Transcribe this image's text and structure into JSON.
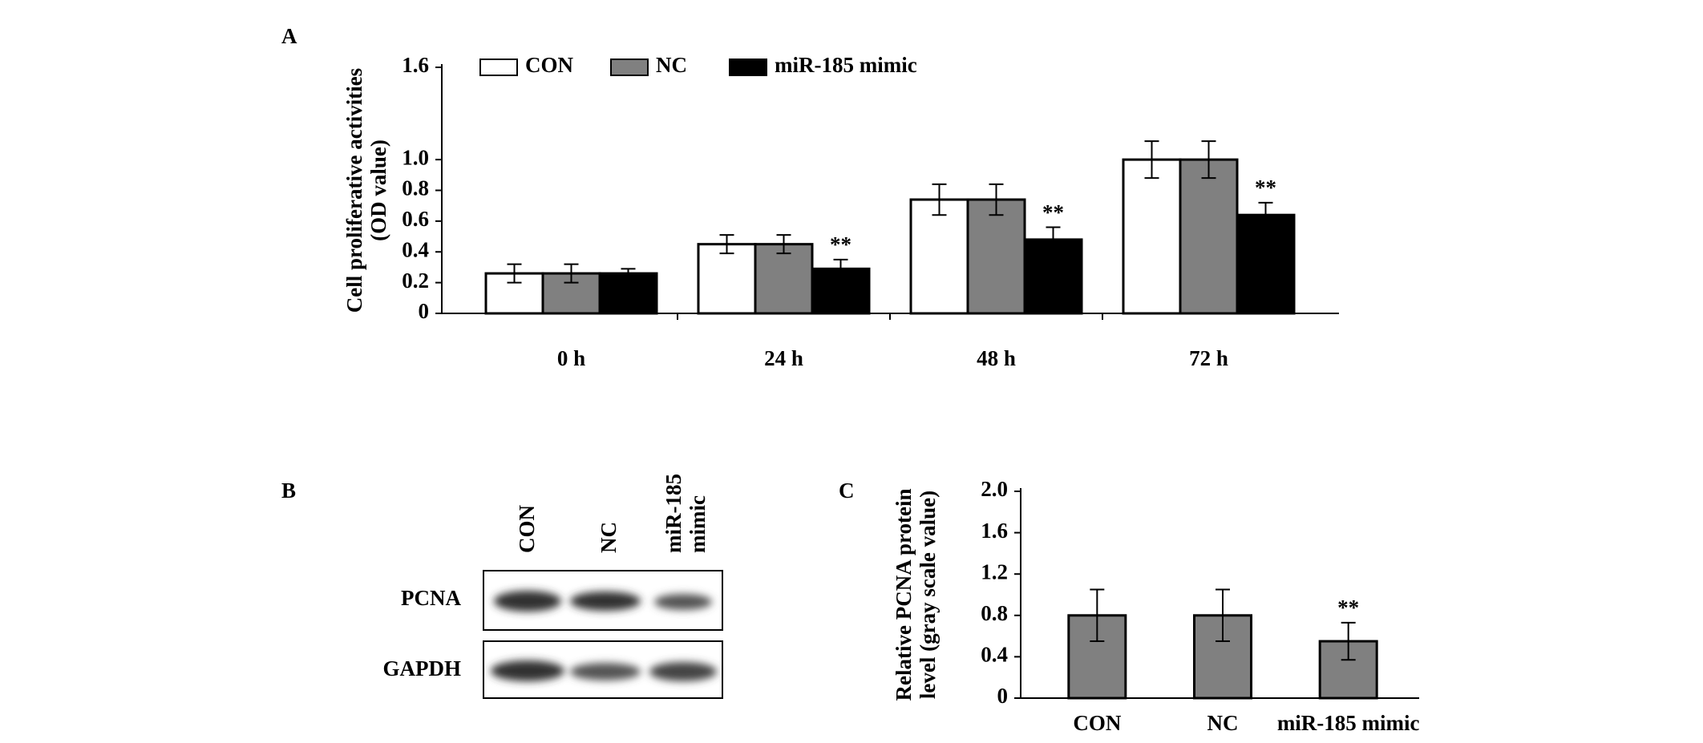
{
  "chart_data": [
    {
      "type": "bar",
      "panel_label": "A",
      "y_label": [
        "Cell proliferative activities",
        "(OD value)"
      ],
      "categories": [
        "0 h",
        "24 h",
        "48 h",
        "72 h"
      ],
      "series": [
        {
          "name": "CON",
          "color": "#ffffff",
          "values": [
            0.26,
            0.45,
            0.74,
            1.0
          ],
          "errors": [
            0.06,
            0.06,
            0.1,
            0.12
          ],
          "value_annotations": [
            null,
            null,
            null,
            null
          ]
        },
        {
          "name": "NC",
          "color": "#808080",
          "values": [
            0.26,
            0.45,
            0.74,
            1.0
          ],
          "errors": [
            0.06,
            0.06,
            0.1,
            0.12
          ],
          "value_annotations": [
            null,
            null,
            null,
            null
          ]
        },
        {
          "name": "miR-185 mimic",
          "color": "#000000",
          "values": [
            0.26,
            0.29,
            0.48,
            0.64
          ],
          "errors": [
            0.03,
            0.06,
            0.08,
            0.08
          ],
          "value_annotations": [
            null,
            "**",
            "**",
            "**"
          ]
        }
      ],
      "ylim": [
        0,
        1.6
      ],
      "yticks": [
        0,
        0.2,
        0.4,
        0.6,
        0.8,
        {
          "value": 1.0,
          "label": "1.0"
        },
        1.6
      ],
      "legend": "top"
    },
    {
      "type": "bar",
      "panel_label": "C",
      "y_label": [
        "Relative PCNA protein",
        "level (gray scale value)"
      ],
      "categories": [
        "CON",
        "NC",
        "miR-185 mimic"
      ],
      "values": [
        0.8,
        0.8,
        0.55
      ],
      "errors": [
        0.25,
        0.25,
        0.18
      ],
      "color": "#808080",
      "value_annotations": [
        null,
        null,
        "**"
      ],
      "ylim": [
        0,
        2.0
      ],
      "yticks": [
        0,
        0.4,
        0.8,
        1.2,
        1.6,
        {
          "value": 2.0,
          "label": "2.0"
        }
      ]
    }
  ],
  "blot": {
    "panel_label": "B",
    "lanes": [
      [
        "CON"
      ],
      [
        "NC"
      ],
      [
        "miR-185",
        "mimic"
      ]
    ],
    "rows": [
      "PCNA",
      "GAPDH"
    ]
  }
}
